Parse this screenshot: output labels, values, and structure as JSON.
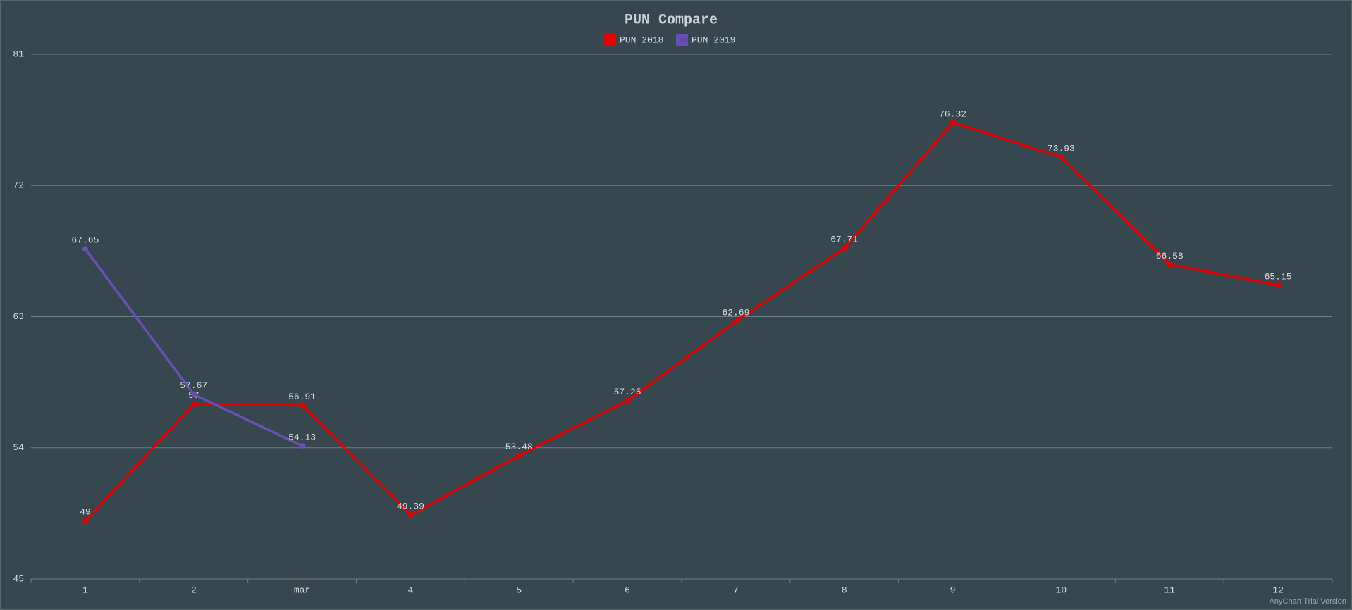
{
  "chart_data": {
    "type": "line",
    "title": "PUN Compare",
    "categories": [
      "1",
      "2",
      "mar",
      "4",
      "5",
      "6",
      "7",
      "8",
      "9",
      "10",
      "11",
      "12"
    ],
    "series": [
      {
        "name": "PUN 2018",
        "color": "#e50000",
        "values": [
          49,
          57,
          56.91,
          49.39,
          53.48,
          57.25,
          62.69,
          67.71,
          76.32,
          73.93,
          66.58,
          65.15
        ]
      },
      {
        "name": "PUN 2019",
        "color": "#6a4fb3",
        "values": [
          67.65,
          57.67,
          54.13,
          null,
          null,
          null,
          null,
          null,
          null,
          null,
          null,
          null
        ]
      }
    ],
    "ylim": [
      45,
      81
    ],
    "yticks": [
      45,
      54,
      63,
      72,
      81
    ],
    "grid": true,
    "legend": "top",
    "credits": "AnyChart Trial Version"
  }
}
